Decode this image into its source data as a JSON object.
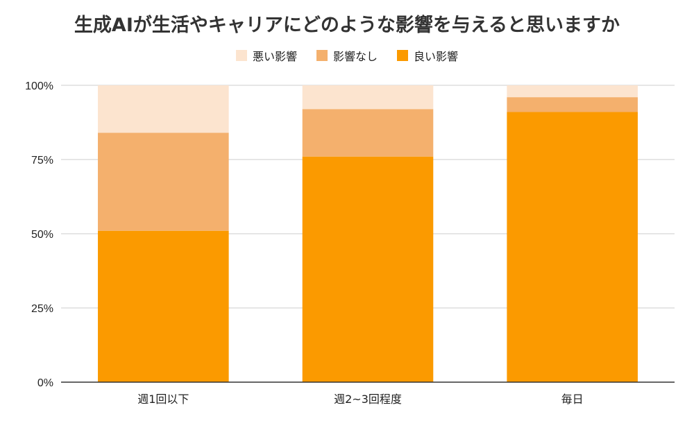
{
  "chart_data": {
    "type": "bar",
    "stacked": "percent",
    "title": "生成AIが生活やキャリアにどのような影響を与えると思いますか",
    "legend_position": "top",
    "grid": true,
    "categories": [
      "週1回以下",
      "週2~3回程度",
      "毎日"
    ],
    "series": [
      {
        "name": "悪い影響",
        "color": "#fce4cf",
        "values": [
          16,
          8,
          4
        ]
      },
      {
        "name": "影響なし",
        "color": "#f4b06d",
        "values": [
          33,
          16,
          5
        ]
      },
      {
        "name": "良い影響",
        "color": "#fb9a00",
        "values": [
          51,
          76,
          91
        ]
      }
    ],
    "ylim": [
      0,
      100
    ],
    "yticks": [
      "0%",
      "25%",
      "50%",
      "75%",
      "100%"
    ],
    "ytick_values": [
      0,
      25,
      50,
      75,
      100
    ]
  }
}
